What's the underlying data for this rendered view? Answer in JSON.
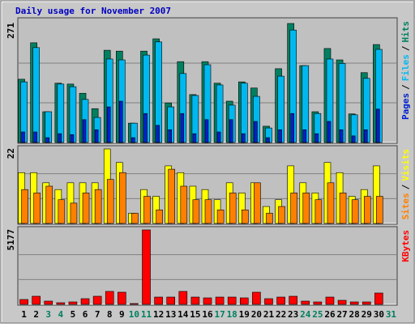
{
  "title": "Daily usage for November 2007",
  "legend_separator": "/",
  "chart_data": [
    {
      "type": "bar",
      "ylim": [
        0,
        271
      ],
      "yticks": [
        271
      ],
      "grid_divisions": 3,
      "series": [
        {
          "name": "Hits",
          "color": "#008060",
          "values": [
            144,
            227,
            70,
            135,
            133,
            112,
            77,
            210,
            208,
            44,
            208,
            236,
            90,
            184,
            109,
            184,
            135,
            94,
            138,
            124,
            37,
            168,
            271,
            175,
            70,
            214,
            188,
            65,
            159,
            223,
            null
          ]
        },
        {
          "name": "Files",
          "color": "#00b8f0",
          "values": [
            138,
            216,
            70,
            133,
            127,
            98,
            57,
            190,
            188,
            44,
            199,
            229,
            81,
            157,
            107,
            177,
            131,
            85,
            135,
            105,
            33,
            151,
            256,
            175,
            66,
            190,
            180,
            63,
            146,
            212,
            null
          ]
        },
        {
          "name": "Pages",
          "color": "#0020d0",
          "values": [
            24,
            24,
            11,
            20,
            18,
            52,
            29,
            81,
            94,
            11,
            66,
            39,
            29,
            66,
            20,
            52,
            24,
            52,
            20,
            48,
            11,
            29,
            66,
            29,
            20,
            48,
            29,
            15,
            29,
            76,
            null
          ]
        }
      ]
    },
    {
      "type": "bar",
      "ylim": [
        0,
        22
      ],
      "yticks": [
        22
      ],
      "grid_divisions": 3,
      "series": [
        {
          "name": "Visits",
          "color": "#ffff00",
          "values": [
            15,
            15,
            12,
            10,
            12,
            12,
            12,
            22,
            18,
            3,
            10,
            8,
            17,
            15,
            11,
            10,
            7,
            12,
            9,
            12,
            5,
            7,
            17,
            12,
            9,
            18,
            15,
            8,
            10,
            17,
            null
          ]
        },
        {
          "name": "Sites",
          "color": "#ff8000",
          "values": [
            10,
            9,
            11,
            7,
            6,
            9,
            10,
            13,
            15,
            3,
            8,
            4,
            16,
            11,
            7,
            7,
            4,
            9,
            4,
            12,
            3,
            5,
            9,
            9,
            7,
            12,
            9,
            7,
            8,
            8,
            null
          ]
        }
      ]
    },
    {
      "type": "bar",
      "ylim": [
        0,
        5177
      ],
      "yticks": [
        5177
      ],
      "grid_divisions": 3,
      "categories": [
        "1",
        "2",
        "3",
        "4",
        "5",
        "6",
        "7",
        "8",
        "9",
        "10",
        "11",
        "12",
        "13",
        "14",
        "15",
        "16",
        "17",
        "18",
        "19",
        "20",
        "21",
        "22",
        "23",
        "24",
        "25",
        "26",
        "27",
        "28",
        "29",
        "30",
        "31"
      ],
      "label_colors": [
        "#000",
        "#000",
        "#008060",
        "#008060",
        "#000",
        "#000",
        "#000",
        "#000",
        "#000",
        "#008060",
        "#008060",
        "#000",
        "#000",
        "#000",
        "#000",
        "#000",
        "#008060",
        "#008060",
        "#000",
        "#000",
        "#000",
        "#000",
        "#000",
        "#008060",
        "#008060",
        "#000",
        "#000",
        "#000",
        "#000",
        "#000",
        "#008060"
      ],
      "series": [
        {
          "name": "KBytes",
          "color": "#ff0000",
          "values": [
            338,
            563,
            225,
            113,
            169,
            394,
            563,
            900,
            844,
            56,
            5177,
            506,
            506,
            900,
            506,
            450,
            506,
            506,
            450,
            844,
            394,
            506,
            563,
            225,
            169,
            506,
            281,
            169,
            169,
            788,
            null
          ]
        }
      ]
    }
  ]
}
